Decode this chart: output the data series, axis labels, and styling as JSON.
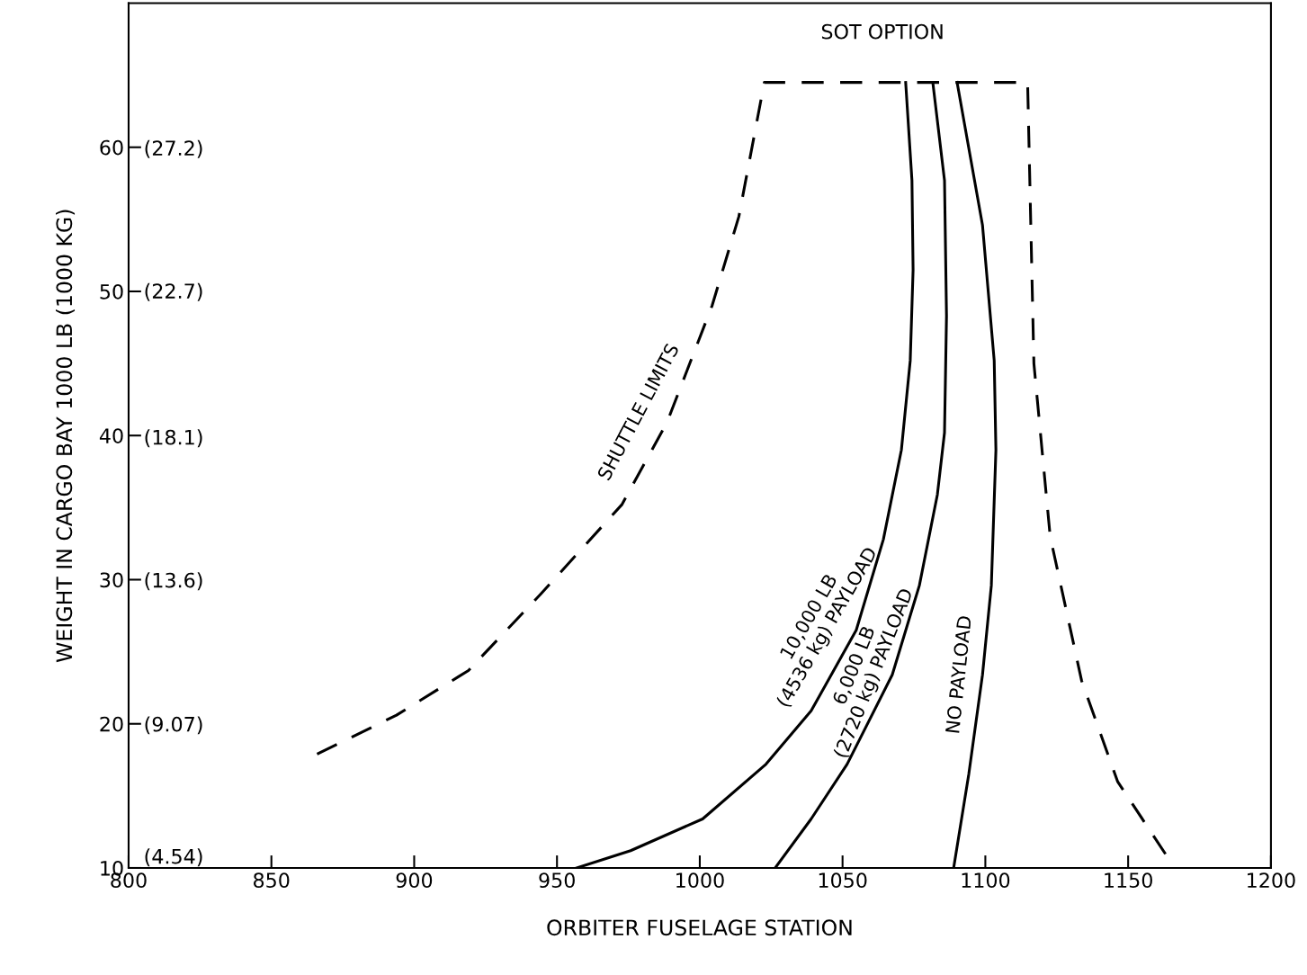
{
  "chart_data": {
    "type": "line",
    "xlabel": "ORBITER FUSELAGE STATION",
    "ylabel": "WEIGHT IN CARGO BAY 1000 LB (1000 KG)",
    "xlim": [
      800,
      1200
    ],
    "xticks": [
      800,
      850,
      900,
      950,
      1000,
      1050,
      1100,
      1150,
      1200
    ],
    "ylim": [
      10,
      70
    ],
    "yticks": [
      10,
      20,
      30,
      40,
      50,
      60
    ],
    "y2lim": [
      4.536,
      31.752
    ],
    "y2ticks": [
      {
        "value": 4.54,
        "label": "(4.54)"
      },
      {
        "value": 9.07,
        "label": "(9.07)"
      },
      {
        "value": 13.6,
        "label": "(13.6)"
      },
      {
        "value": 18.1,
        "label": "(18.1)"
      },
      {
        "value": 22.7,
        "label": "(22.7)"
      },
      {
        "value": 27.2,
        "label": "(27.2)"
      }
    ],
    "grid": false,
    "legend": false,
    "marker": "none",
    "series": [
      {
        "name": "SHUTTLE LIMITS",
        "color": "#000000",
        "line_style": "dashed",
        "x": [
          866,
          893.8,
          919,
          944.3,
          972.7,
          988.5,
          1004.3,
          1013.7,
          1022.6,
          1114.8,
          1117,
          1122.7,
          1133.7,
          1146.3,
          1165.3
        ],
        "values": [
          17.9,
          20.6,
          23.7,
          29,
          35.2,
          40.9,
          49,
          55.2,
          64.5,
          64.5,
          45,
          33,
          23,
          16,
          10.3
        ]
      },
      {
        "name": "10,000 LB\n(4536 kg) PAYLOAD",
        "color": "#000000",
        "line_style": "solid",
        "x": [
          1072.1,
          1074.3,
          1074.7,
          1073.7,
          1070.6,
          1064.3,
          1054.8,
          1039,
          1023.2,
          1001,
          975.8,
          956.9
        ],
        "values": [
          64.5,
          57.7,
          51.5,
          45.2,
          39,
          32.8,
          26.5,
          20.9,
          17.2,
          13.4,
          11.2,
          10
        ]
      },
      {
        "name": "6,000 LB\n(2720 kg) PAYLOAD",
        "color": "#000000",
        "line_style": "solid",
        "x": [
          1081.6,
          1085.7,
          1086.4,
          1085.7,
          1083.2,
          1076.9,
          1067.4,
          1051.6,
          1039,
          1026.4
        ],
        "values": [
          64.5,
          57.7,
          48.3,
          40.2,
          35.9,
          29.6,
          23.4,
          17.2,
          13.4,
          10
        ]
      },
      {
        "name": "NO PAYLOAD",
        "color": "#000000",
        "line_style": "solid",
        "x": [
          1090.1,
          1099,
          1103.1,
          1103.7,
          1102.1,
          1099,
          1094.2,
          1088.9
        ],
        "values": [
          64.5,
          54.6,
          45.2,
          39,
          29.6,
          23.4,
          16.5,
          10
        ]
      }
    ],
    "annotations": [
      "SOT OPTION"
    ]
  }
}
